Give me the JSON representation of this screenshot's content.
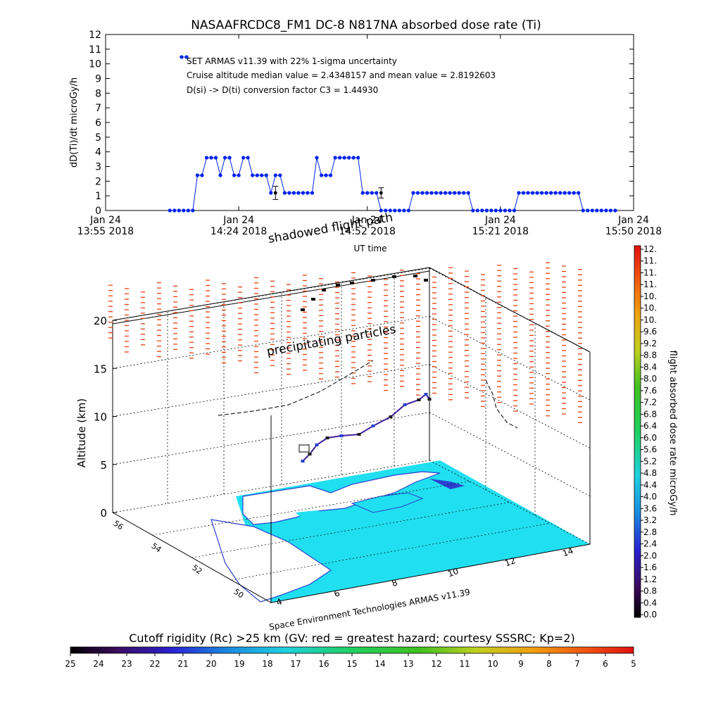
{
  "chart_data": [
    {
      "type": "line",
      "title": "NASAAFRCDC8_FM1 DC-8    N817NA absorbed dose rate (Ti)",
      "ylabel": "dD(Ti)/dt microGy/h",
      "xlabel": "UT time",
      "ylim": [
        0,
        12
      ],
      "yticks": [
        "0",
        "1",
        "2",
        "3",
        "4",
        "5",
        "6",
        "7",
        "8",
        "9",
        "10",
        "11",
        "12"
      ],
      "xticks": [
        {
          "line1": "Jan 24",
          "line2": "13:55 2018"
        },
        {
          "line1": "Jan 24",
          "line2": "14:24 2018"
        },
        {
          "line1": "Jan 24",
          "line2": "14:52 2018"
        },
        {
          "line1": "Jan 24",
          "line2": "15:21 2018"
        },
        {
          "line1": "Jan 24",
          "line2": "15:50 2018"
        }
      ],
      "legend_marker_value": 10.6,
      "annotations": [
        "SET ARMAS v11.39 with 22% 1-sigma uncertainty",
        "Cruise altitude median value = 2.4348157 and mean value = 2.8192603",
        "D(si) -> D(ti) conversion factor C3 = 1.44930"
      ],
      "series": [
        {
          "color": "#0022ee",
          "x_minutes": [
            28,
            30,
            32,
            34,
            36,
            38,
            40,
            42,
            44,
            46,
            48,
            50,
            52,
            54,
            56,
            58,
            60,
            62,
            64,
            66,
            68,
            70,
            72,
            74,
            76,
            78,
            80,
            82,
            84,
            86,
            88,
            90,
            92,
            94,
            96,
            98,
            100,
            102,
            104,
            106,
            108,
            110,
            112,
            114,
            116,
            118,
            120,
            122,
            124,
            126,
            128,
            130,
            132,
            134,
            136,
            138,
            140,
            142,
            144,
            146,
            148,
            150,
            152,
            154,
            156,
            158,
            160,
            162,
            164,
            166,
            168,
            170,
            172,
            174,
            176,
            178,
            180,
            182,
            184,
            186,
            188,
            190,
            192,
            194,
            196,
            198,
            200,
            202,
            204,
            206,
            208,
            210,
            212,
            214,
            216,
            218,
            220,
            222
          ],
          "values": [
            0,
            0,
            0,
            0,
            0,
            0,
            2.4,
            2.4,
            3.6,
            3.6,
            3.6,
            2.4,
            3.6,
            3.6,
            2.4,
            2.4,
            3.6,
            3.6,
            2.4,
            2.4,
            2.4,
            2.4,
            1.2,
            2.4,
            2.4,
            1.2,
            1.2,
            1.2,
            1.2,
            1.2,
            1.2,
            1.2,
            3.6,
            2.4,
            2.4,
            2.4,
            3.6,
            3.6,
            3.6,
            3.6,
            3.6,
            3.6,
            1.2,
            1.2,
            1.2,
            1.2,
            0,
            0,
            0,
            0,
            0,
            0,
            0,
            1.2,
            1.2,
            1.2,
            1.2,
            1.2,
            1.2,
            1.2,
            1.2,
            1.2,
            1.2,
            1.2,
            1.2,
            1.2,
            0,
            0,
            0,
            0,
            0,
            0,
            0,
            0,
            0,
            0,
            1.2,
            1.2,
            1.2,
            1.2,
            1.2,
            1.2,
            1.2,
            1.2,
            1.2,
            1.2,
            1.2,
            1.2,
            1.2,
            1.2,
            0,
            0,
            0,
            0,
            0,
            0,
            0,
            0
          ],
          "error_bars": [
            {
              "x_minutes": 74,
              "value": 1.2,
              "err": 0.45
            },
            {
              "x_minutes": 120,
              "value": 1.2,
              "err": 0.35
            }
          ]
        }
      ]
    },
    {
      "type": "scatter",
      "zlabel": "Altitude (km)",
      "zticks": [
        "0",
        "5",
        "10",
        "15",
        "20"
      ],
      "lat_ticks": [
        "56",
        "54",
        "52",
        "50"
      ],
      "lon_ticks": [
        "4",
        "6",
        "8",
        "10",
        "12",
        "14"
      ],
      "annotations": [
        "shadowed flight path",
        "precipitating particles"
      ],
      "credit": "Space Environment Technologies ARMAS v11.39",
      "colorbar": {
        "label": "flight absorbed dose rate microGy/h",
        "ticks": [
          "12.",
          "11.",
          "11.",
          "11.",
          "10.",
          "10.",
          "10.",
          "9.6",
          "9.2",
          "8.8",
          "8.4",
          "8.0",
          "7.6",
          "7.2",
          "6.8",
          "6.4",
          "6.0",
          "5.6",
          "5.2",
          "4.8",
          "4.4",
          "4.0",
          "3.6",
          "3.2",
          "2.8",
          "2.4",
          "2.0",
          "1.6",
          "1.2",
          "0.8",
          "0.4",
          "0.0"
        ]
      }
    },
    {
      "type": "heatmap",
      "title": "Cutoff rigidity (Rc) >25 km (GV: red = greatest hazard; courtesy SSSRC; Kp=2)",
      "ticks": [
        "25",
        "24",
        "23",
        "22",
        "21",
        "20",
        "19",
        "18",
        "17",
        "16",
        "15",
        "14",
        "13",
        "12",
        "11",
        "10",
        "9",
        "8",
        "7",
        "6",
        "5"
      ]
    }
  ]
}
